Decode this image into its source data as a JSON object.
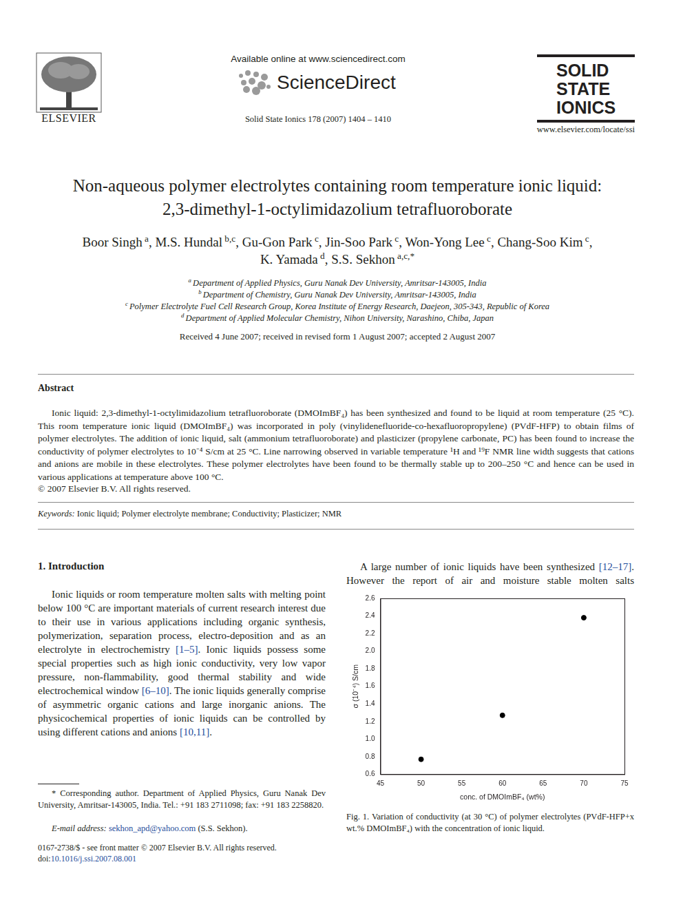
{
  "header": {
    "publisher": "ELSEVIER",
    "available_online": "Available online at www.sciencedirect.com",
    "brand": "ScienceDirect",
    "citation": "Solid State Ionics 178 (2007) 1404 – 1410",
    "journal": [
      "SOLID",
      "STATE",
      "IONICS"
    ],
    "url": "www.elsevier.com/locate/ssi"
  },
  "title": [
    "Non-aqueous polymer electrolytes containing room temperature ionic liquid:",
    "2,3-dimethyl-1-octylimidazolium tetrafluoroborate"
  ],
  "authors": [
    {
      "name": "Boor Singh",
      "aff": "a"
    },
    {
      "name": "M.S. Hundal",
      "aff": "b,c"
    },
    {
      "name": "Gu-Gon Park",
      "aff": "c"
    },
    {
      "name": "Jin-Soo Park",
      "aff": "c"
    },
    {
      "name": "Won-Yong Lee",
      "aff": "c"
    },
    {
      "name": "Chang-Soo Kim",
      "aff": "c"
    },
    {
      "name": "K. Yamada",
      "aff": "d"
    },
    {
      "name": "S.S. Sekhon",
      "aff": "a,c,*"
    }
  ],
  "affiliations": [
    {
      "mark": "a",
      "text": "Department of Applied Physics, Guru Nanak Dev University, Amritsar-143005, India"
    },
    {
      "mark": "b",
      "text": "Department of Chemistry, Guru Nanak Dev University, Amritsar-143005, India"
    },
    {
      "mark": "c",
      "text": "Polymer Electrolyte Fuel Cell Research Group, Korea Institute of Energy Research, Daejeon, 305-343, Republic of Korea"
    },
    {
      "mark": "d",
      "text": "Department of Applied Molecular Chemistry, Nihon University, Narashino, Chiba, Japan"
    }
  ],
  "dates": "Received 4 June 2007; received in revised form 1 August 2007; accepted 2 August 2007",
  "abstract": {
    "heading": "Abstract",
    "text": "Ionic liquid: 2,3-dimethyl-1-octylimidazolium tetrafluoroborate (DMOImBF₄) has been synthesized and found to be liquid at room temperature (25 °C). This room temperature ionic liquid (DMOImBF₄) was incorporated in poly (vinylidenefluoride-co-hexafluoropropylene) (PVdF-HFP) to obtain films of polymer electrolytes. The addition of ionic liquid, salt (ammonium tetrafluoroborate) and plasticizer (propylene carbonate, PC) has been found to increase the conductivity of polymer electrolytes to 10⁻⁴ S/cm at 25 °C. Line narrowing observed in variable temperature ¹H and ¹⁹F NMR line width suggests that cations and anions are mobile in these electrolytes. These polymer electrolytes have been found to be thermally stable up to 200–250 °C and hence can be used in various applications at temperature above 100 °C.",
    "copyright": "© 2007 Elsevier B.V. All rights reserved."
  },
  "keywords": {
    "label": "Keywords:",
    "text": "Ionic liquid; Polymer electrolyte membrane; Conductivity; Plasticizer; NMR"
  },
  "introduction": {
    "heading": "1. Introduction",
    "paragraph": [
      "Ionic liquids or room temperature molten salts with melting point below 100 °C are important materials of current research interest due to their use in various applications including organic synthesis, polymerization, separation process, electro-deposition and as an electrolyte in electrochemistry ",
      {
        "ref": "[1–5]"
      },
      ". Ionic liquids possess some special properties such as high ionic conductivity, very low vapor pressure, non-flammability, good thermal stability and wide electrochemical window ",
      {
        "ref": "[6–10]"
      },
      ". The ionic liquids generally comprise of asymmetric organic cations and large inorganic anions. The physicochemical properties of ionic liquids can be controlled by using different cations and anions ",
      {
        "ref": "[10,11]"
      },
      "."
    ]
  },
  "right_column": [
    "A large number of ionic liquids have been synthesized ",
    {
      "ref": "[12–17]"
    },
    ". However the report of air and moisture stable molten salts"
  ],
  "chart_data": {
    "type": "scatter",
    "x": [
      50,
      60,
      70
    ],
    "values": [
      0.77,
      1.27,
      2.38
    ],
    "color": "#000000",
    "marker": "circle",
    "x_label": "conc. of DMOImBF₄ (wt%)",
    "y_label": "σ (10⁻⁴) S/cm",
    "xlim": [
      45,
      75
    ],
    "xticks": [
      45,
      50,
      55,
      60,
      65,
      70,
      75
    ],
    "ylim": [
      0.6,
      2.6
    ],
    "yticks": [
      0.6,
      0.8,
      {
        "value": 1,
        "label": "1.0"
      },
      1.2,
      1.4,
      1.6,
      1.8,
      {
        "value": 2,
        "label": "2.0"
      },
      2.2,
      2.4,
      2.6
    ],
    "grid": false
  },
  "caption": "Fig. 1. Variation of conductivity (at 30 °C) of polymer electrolytes (PVdF-HFP+x wt.% DMOImBF₄) with the concentration of ionic liquid.",
  "footnote": {
    "corresponding": "* Corresponding author. Department of Applied Physics, Guru Nanak Dev University, Amritsar-143005, India. Tel.: +91 183 2711098; fax: +91 183 2258820.",
    "email_label": "E-mail address:",
    "email": "sekhon_apd@yahoo.com",
    "email_owner": "(S.S. Sekhon)."
  },
  "issn": "0167-2738/$ - see front matter © 2007 Elsevier B.V. All rights reserved.",
  "doi": {
    "label": "doi:",
    "value": "10.1016/j.ssi.2007.08.001"
  }
}
